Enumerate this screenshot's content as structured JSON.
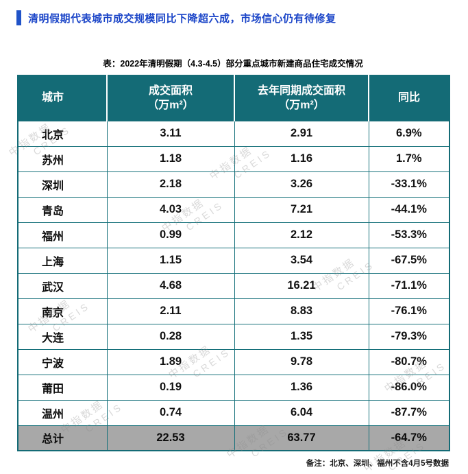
{
  "page": {
    "headline": "清明假期代表城市成交规模同比下降超六成，市场信心仍有待修复",
    "note": "备注：北京、深圳、福州不含4月5号数据"
  },
  "watermark": {
    "cn": "中指数据",
    "en": "CREIS"
  },
  "colors": {
    "headline_blue": "#1b45c8",
    "accent_bar_blue": "#2053c8",
    "table_header_teal": "#146b76",
    "table_border_teal": "#15707a",
    "total_row_gray": "#a8a8a8"
  },
  "chart_data": {
    "type": "table",
    "caption": "表：2022年清明假期（4.3-4.5）部分重点城市新建商品住宅成交情况",
    "headers": {
      "city": "城市",
      "area_line1": "成交面积",
      "area_line2": "（万m²）",
      "last_line1": "去年同期成交面积",
      "last_line2": "（万m²）",
      "yoy": "同比"
    },
    "rows": [
      {
        "city": "北京",
        "area": "3.11",
        "last_year": "2.91",
        "yoy": "6.9%"
      },
      {
        "city": "苏州",
        "area": "1.18",
        "last_year": "1.16",
        "yoy": "1.7%"
      },
      {
        "city": "深圳",
        "area": "2.18",
        "last_year": "3.26",
        "yoy": "-33.1%"
      },
      {
        "city": "青岛",
        "area": "4.03",
        "last_year": "7.21",
        "yoy": "-44.1%"
      },
      {
        "city": "福州",
        "area": "0.99",
        "last_year": "2.12",
        "yoy": "-53.3%"
      },
      {
        "city": "上海",
        "area": "1.15",
        "last_year": "3.54",
        "yoy": "-67.5%"
      },
      {
        "city": "武汉",
        "area": "4.68",
        "last_year": "16.21",
        "yoy": "-71.1%"
      },
      {
        "city": "南京",
        "area": "2.11",
        "last_year": "8.83",
        "yoy": "-76.1%"
      },
      {
        "city": "大连",
        "area": "0.28",
        "last_year": "1.35",
        "yoy": "-79.3%"
      },
      {
        "city": "宁波",
        "area": "1.89",
        "last_year": "9.78",
        "yoy": "-80.7%"
      },
      {
        "city": "莆田",
        "area": "0.19",
        "last_year": "1.36",
        "yoy": "-86.0%"
      },
      {
        "city": "温州",
        "area": "0.74",
        "last_year": "6.04",
        "yoy": "-87.7%"
      }
    ],
    "total": {
      "city": "总计",
      "area": "22.53",
      "last_year": "63.77",
      "yoy": "-64.7%"
    }
  }
}
